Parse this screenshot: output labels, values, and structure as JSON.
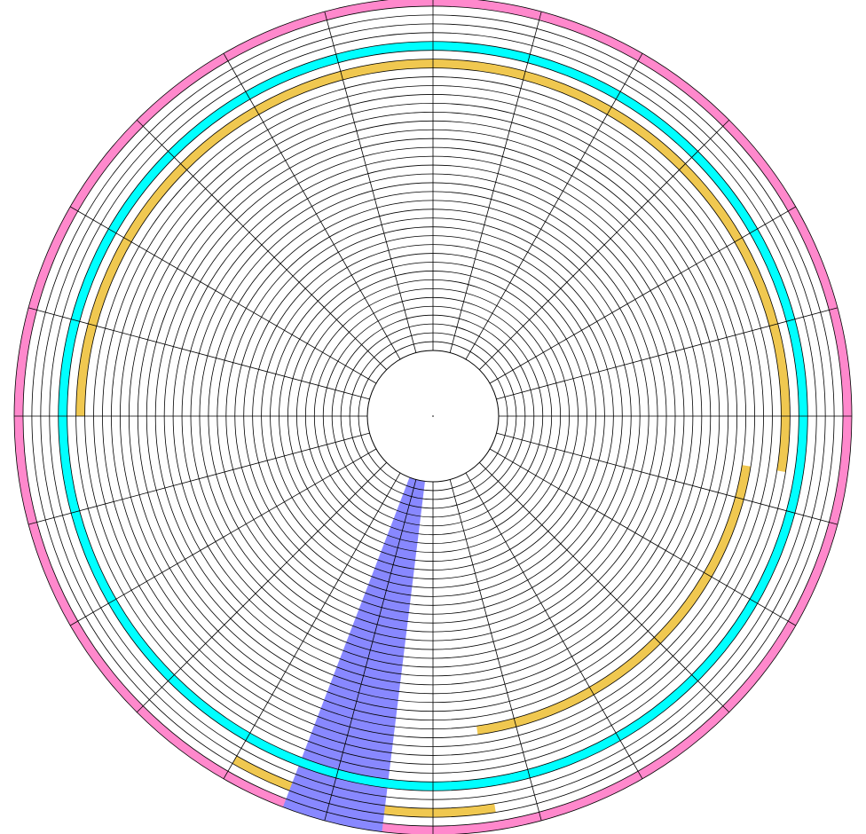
{
  "diagram": {
    "type": "disk-sector-map",
    "tracks": 40,
    "sectors": 24,
    "colors": {
      "background": "#ffffff",
      "grid": "#000000",
      "outer_ring": "#ff88cc",
      "cyan_track": "#00ffff",
      "gold_track": "#f0c850",
      "wedge": "#8888ff"
    },
    "outer_ring": {
      "track_from": 39,
      "track_to": 40,
      "start_deg": 0,
      "end_deg": 360
    },
    "cyan_track": {
      "track": 34,
      "start_deg": 0,
      "end_deg": 360
    },
    "gold_arcs": [
      {
        "track": 32,
        "start_deg": -112,
        "end_deg": 9
      },
      {
        "track": 28,
        "start_deg": 9,
        "end_deg": 82
      },
      {
        "track": 37,
        "start_deg": 81,
        "end_deg": 120
      },
      {
        "track": 32,
        "start_deg": 180,
        "end_deg": 310
      }
    ],
    "wedge": {
      "track_from": 0,
      "track_to": 40,
      "start_deg": 97,
      "end_deg": 111
    }
  }
}
